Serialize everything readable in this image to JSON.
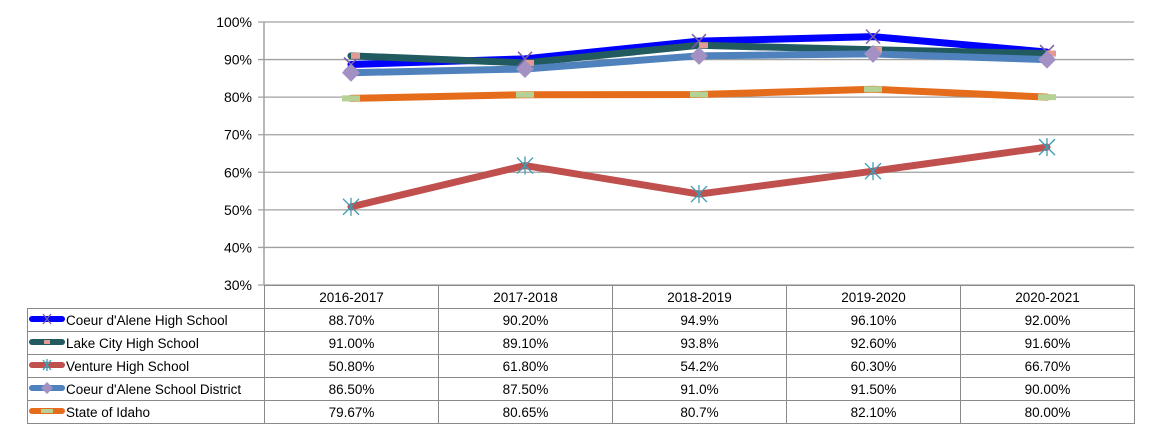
{
  "chart_data": {
    "type": "line",
    "title": "",
    "xlabel": "",
    "ylabel": "",
    "ylim": [
      30,
      100
    ],
    "yticks": [
      "30%",
      "40%",
      "50%",
      "60%",
      "70%",
      "80%",
      "90%",
      "100%"
    ],
    "ytick_values": [
      30,
      40,
      50,
      60,
      70,
      80,
      90,
      100
    ],
    "grid": true,
    "legend": "data-table-left",
    "categories": [
      "2016-2017",
      "2017-2018",
      "2018-2019",
      "2019-2020",
      "2020-2021"
    ],
    "series": [
      {
        "name": "Coeur d'Alene High School",
        "values": [
          88.7,
          90.2,
          94.9,
          96.1,
          92.0
        ],
        "labels": [
          "88.70%",
          "90.20%",
          "94.9%",
          "96.10%",
          "92.00%"
        ],
        "line_color": "#0000ff",
        "marker": "x",
        "marker_color": "#7b5ea7"
      },
      {
        "name": "Lake City High School",
        "values": [
          91.0,
          89.1,
          93.8,
          92.6,
          91.6
        ],
        "labels": [
          "91.00%",
          "89.10%",
          "93.8%",
          "92.60%",
          "91.60%"
        ],
        "line_color": "#215a5f",
        "marker": "rect",
        "marker_color": "#e39a95"
      },
      {
        "name": "Venture High School",
        "values": [
          50.8,
          61.8,
          54.2,
          60.3,
          66.7
        ],
        "labels": [
          "50.80%",
          "61.80%",
          "54.2%",
          "60.30%",
          "66.70%"
        ],
        "line_color": "#c0504d",
        "marker": "star",
        "marker_color": "#3e9bb5"
      },
      {
        "name": "Coeur d'Alene School District",
        "values": [
          86.5,
          87.5,
          91.0,
          91.5,
          90.0
        ],
        "labels": [
          "86.50%",
          "87.50%",
          "91.0%",
          "91.50%",
          "90.00%"
        ],
        "line_color": "#4f81bd",
        "marker": "diamond",
        "marker_color": "#a291c2"
      },
      {
        "name": "State of Idaho",
        "values": [
          79.67,
          80.65,
          80.7,
          82.1,
          80.0
        ],
        "labels": [
          "79.67%",
          "80.65%",
          "80.7%",
          "82.10%",
          "80.00%"
        ],
        "line_color": "#e46c1b",
        "marker": "dash",
        "marker_color": "#b5d195"
      }
    ]
  }
}
